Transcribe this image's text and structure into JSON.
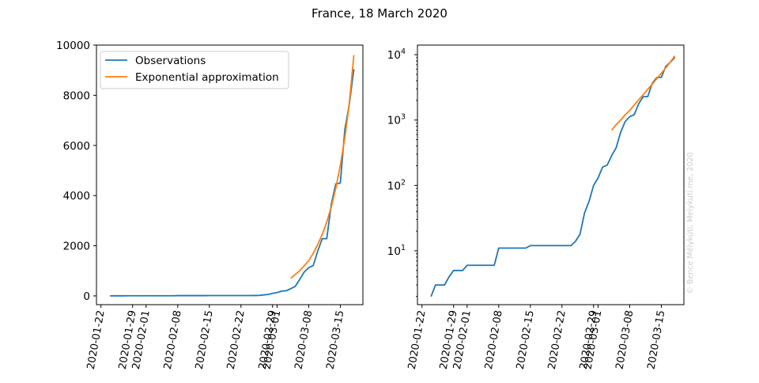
{
  "title": "France, 18 March 2020",
  "watermark": "© Bence Mélykúti, Melykuti.me, 2020",
  "colors": {
    "observations": "#1f77b4",
    "approximation": "#ff7f0e",
    "watermark": "#cccccc",
    "axis": "#000000"
  },
  "chart_data": [
    {
      "type": "line",
      "scale": "linear",
      "title": "",
      "xlabel": "",
      "ylabel": "",
      "xlim": [
        "2020-01-21",
        "2020-03-20"
      ],
      "ylim": [
        -350,
        10000
      ],
      "x_tick_labels": [
        "2020-01-22",
        "2020-01-29",
        "2020-02-01",
        "2020-02-08",
        "2020-02-15",
        "2020-02-22",
        "2020-02-29",
        "2020-03-01",
        "2020-03-08",
        "2020-03-15"
      ],
      "y_ticks": [
        0,
        2000,
        4000,
        6000,
        8000,
        10000
      ],
      "y_tick_labels": [
        "0",
        "2000",
        "4000",
        "6000",
        "8000",
        "10000"
      ],
      "legend": {
        "position": "top-left",
        "entries": [
          "Observations",
          "Exponential approximation"
        ]
      }
    },
    {
      "type": "line",
      "scale": "log",
      "title": "",
      "xlabel": "",
      "ylabel": "",
      "xlim": [
        "2020-01-21",
        "2020-03-20"
      ],
      "ylim": [
        1.5,
        14000
      ],
      "x_tick_labels": [
        "2020-01-22",
        "2020-01-29",
        "2020-02-01",
        "2020-02-08",
        "2020-02-15",
        "2020-02-22",
        "2020-02-29",
        "2020-03-01",
        "2020-03-08",
        "2020-03-15"
      ],
      "y_ticks": [
        10,
        100,
        1000,
        10000
      ],
      "y_tick_labels": [
        "10",
        "10",
        "10",
        "10"
      ],
      "y_tick_exponents": [
        "1",
        "2",
        "3",
        "4"
      ]
    }
  ],
  "series": [
    {
      "name": "Observations",
      "dates": [
        "2020-01-24",
        "2020-01-25",
        "2020-01-26",
        "2020-01-27",
        "2020-01-28",
        "2020-01-29",
        "2020-01-30",
        "2020-01-31",
        "2020-02-01",
        "2020-02-02",
        "2020-02-03",
        "2020-02-04",
        "2020-02-05",
        "2020-02-06",
        "2020-02-07",
        "2020-02-08",
        "2020-02-09",
        "2020-02-10",
        "2020-02-11",
        "2020-02-12",
        "2020-02-13",
        "2020-02-14",
        "2020-02-15",
        "2020-02-16",
        "2020-02-17",
        "2020-02-18",
        "2020-02-19",
        "2020-02-20",
        "2020-02-21",
        "2020-02-22",
        "2020-02-23",
        "2020-02-24",
        "2020-02-25",
        "2020-02-26",
        "2020-02-27",
        "2020-02-28",
        "2020-02-29",
        "2020-03-01",
        "2020-03-02",
        "2020-03-03",
        "2020-03-04",
        "2020-03-05",
        "2020-03-06",
        "2020-03-07",
        "2020-03-08",
        "2020-03-09",
        "2020-03-10",
        "2020-03-11",
        "2020-03-12",
        "2020-03-13",
        "2020-03-14",
        "2020-03-15",
        "2020-03-16",
        "2020-03-17",
        "2020-03-18"
      ],
      "values": [
        2,
        3,
        3,
        3,
        4,
        5,
        5,
        5,
        6,
        6,
        6,
        6,
        6,
        6,
        6,
        11,
        11,
        11,
        11,
        11,
        11,
        11,
        12,
        12,
        12,
        12,
        12,
        12,
        12,
        12,
        12,
        12,
        14,
        18,
        38,
        57,
        100,
        130,
        191,
        204,
        285,
        377,
        653,
        949,
        1126,
        1209,
        1784,
        2281,
        2281,
        3661,
        4469,
        4499,
        6633,
        7652,
        9043
      ]
    },
    {
      "name": "Exponential approximation",
      "dates": [
        "2020-03-04",
        "2020-03-05",
        "2020-03-06",
        "2020-03-07",
        "2020-03-08",
        "2020-03-09",
        "2020-03-10",
        "2020-03-11",
        "2020-03-12",
        "2020-03-13",
        "2020-03-14",
        "2020-03-15",
        "2020-03-16",
        "2020-03-17",
        "2020-03-18"
      ],
      "values": [
        700,
        850,
        1000,
        1200,
        1400,
        1700,
        2050,
        2450,
        2950,
        3550,
        4300,
        5200,
        6300,
        7700,
        9600
      ]
    }
  ]
}
